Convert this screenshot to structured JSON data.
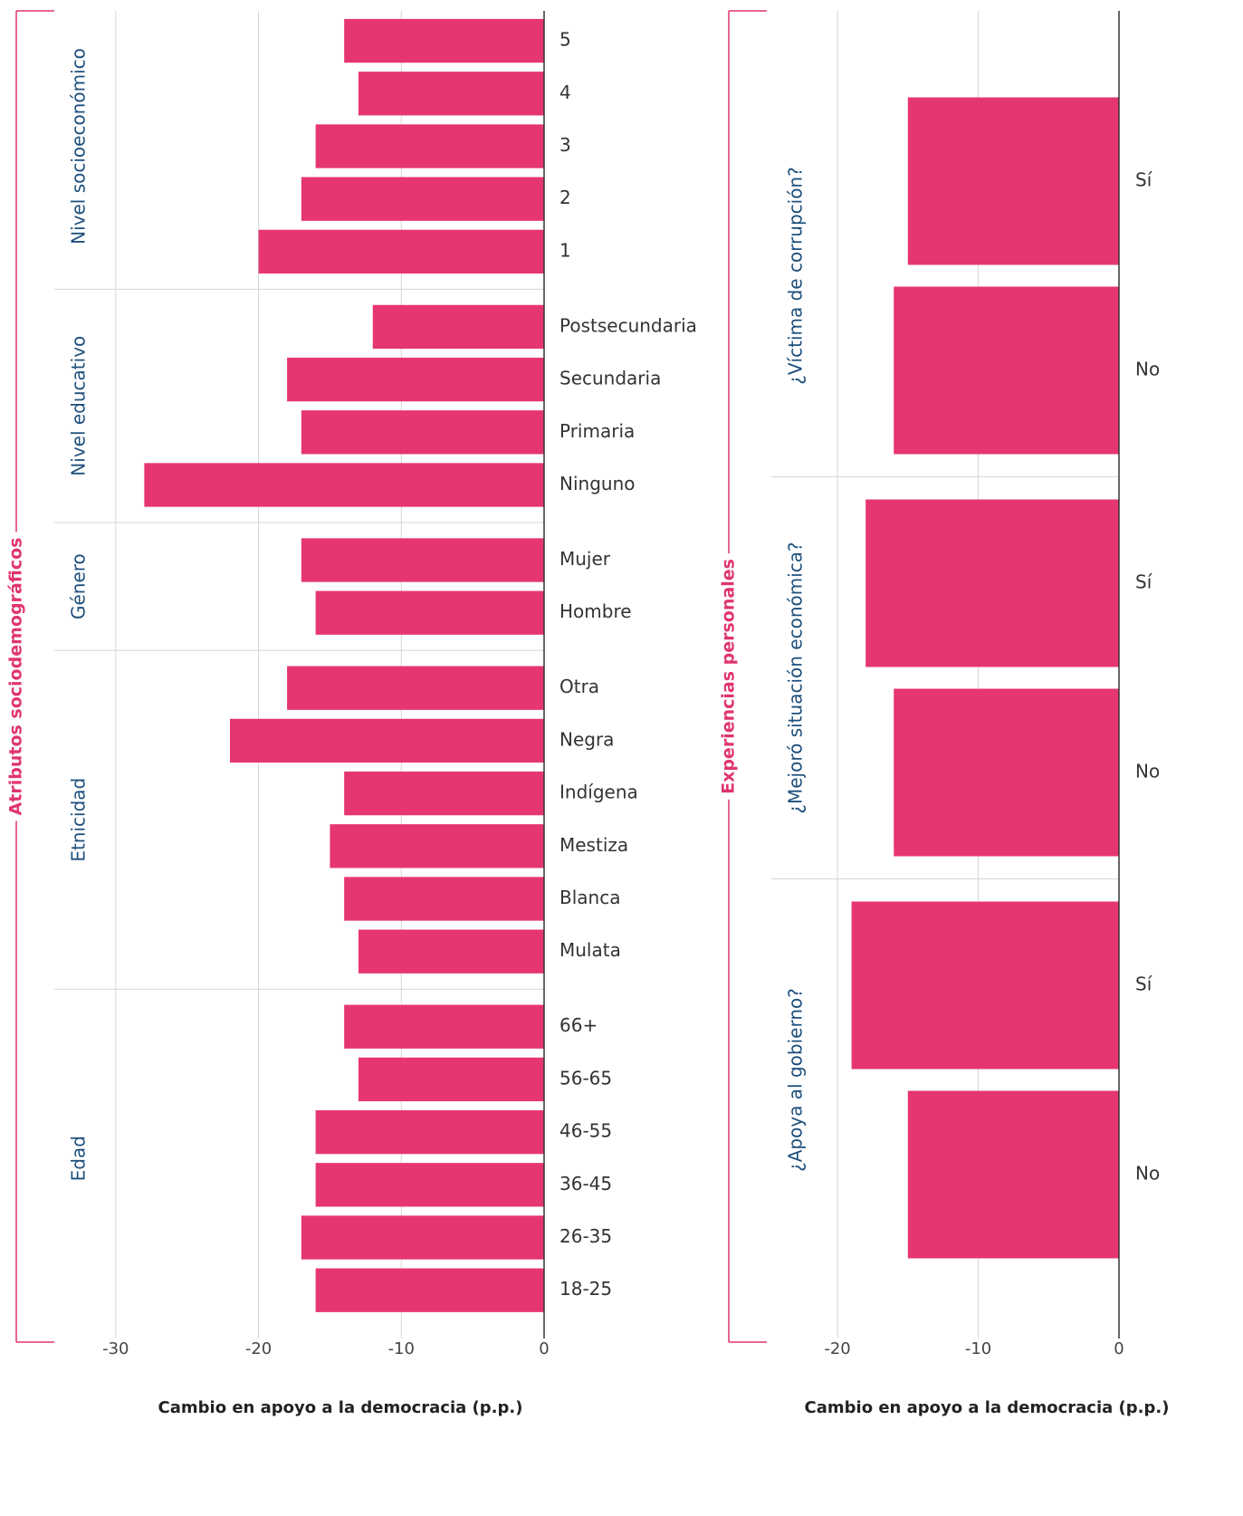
{
  "chart_data": [
    {
      "type": "bar",
      "orientation": "horizontal",
      "group_title": "Atributos sociodemográficos",
      "xlabel": "Cambio en apoyo a la democracia (p.p.)",
      "xlim": [
        -34.3,
        0
      ],
      "xticks": [
        -30,
        -20,
        -10,
        0
      ],
      "grid": true,
      "color": "#e63573",
      "groups": [
        {
          "label": "Nivel socioeconómico",
          "categories": [
            "5",
            "4",
            "3",
            "2",
            "1"
          ],
          "values": [
            -14,
            -13,
            -16,
            -17,
            -20
          ]
        },
        {
          "label": "Nivel educativo",
          "categories": [
            "Postsecundaria",
            "Secundaria",
            "Primaria",
            "Ninguno"
          ],
          "values": [
            -12,
            -18,
            -17,
            -28
          ]
        },
        {
          "label": "Género",
          "categories": [
            "Mujer",
            "Hombre"
          ],
          "values": [
            -17,
            -16
          ]
        },
        {
          "label": "Etnicidad",
          "categories": [
            "Otra",
            "Negra",
            "Indígena",
            "Mestiza",
            "Blanca",
            "Mulata"
          ],
          "values": [
            -18,
            -22,
            -14,
            -15,
            -14,
            -13
          ]
        },
        {
          "label": "Edad",
          "categories": [
            "66+",
            "56-65",
            "46-55",
            "36-45",
            "26-35",
            "18-25"
          ],
          "values": [
            -14,
            -13,
            -16,
            -16,
            -17,
            -16
          ]
        }
      ]
    },
    {
      "type": "bar",
      "orientation": "horizontal",
      "group_title": "Experiencias personales",
      "xlabel": "Cambio en apoyo a la democracia (p.p.)",
      "xlim": [
        -24.7,
        0
      ],
      "xticks": [
        -20,
        -10,
        0
      ],
      "grid": true,
      "color": "#e63573",
      "groups": [
        {
          "label": "¿Víctima de corrupción?",
          "categories": [
            "Sí",
            "No"
          ],
          "values": [
            -15,
            -16
          ]
        },
        {
          "label": "¿Mejoró situación económica?",
          "categories": [
            "Sí",
            "No"
          ],
          "values": [
            -18,
            -16
          ]
        },
        {
          "label": "¿Apoya al gobierno?",
          "categories": [
            "Sí",
            "No"
          ],
          "values": [
            -19,
            -15
          ]
        }
      ]
    }
  ]
}
